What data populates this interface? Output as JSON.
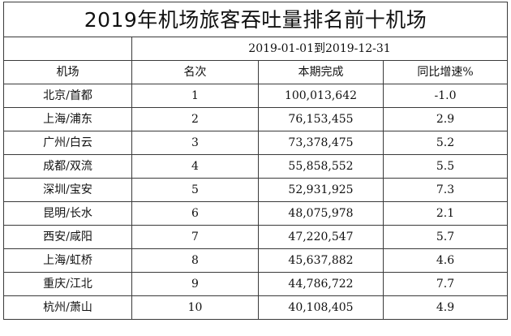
{
  "title": "2019年机场旅客吞吐量排名前十机场",
  "date_range": "2019-01-01到2019-12-31",
  "columns": [
    "机场",
    "名次",
    "本期完成",
    "同比增速%"
  ],
  "rows": [
    {
      "airport": "北京/首都",
      "rank": "1",
      "completed": "100,013,642",
      "growth": "-1.0"
    },
    {
      "airport": "上海/浦东",
      "rank": "2",
      "completed": "76,153,455",
      "growth": "2.9"
    },
    {
      "airport": "广州/白云",
      "rank": "3",
      "completed": "73,378,475",
      "growth": "5.2"
    },
    {
      "airport": "成都/双流",
      "rank": "4",
      "completed": "55,858,552",
      "growth": "5.5"
    },
    {
      "airport": "深圳/宝安",
      "rank": "5",
      "completed": "52,931,925",
      "growth": "7.3"
    },
    {
      "airport": "昆明/长水",
      "rank": "6",
      "completed": "48,075,978",
      "growth": "2.1"
    },
    {
      "airport": "西安/咸阳",
      "rank": "7",
      "completed": "47,220,547",
      "growth": "5.7"
    },
    {
      "airport": "上海/虹桥",
      "rank": "8",
      "completed": "45,637,882",
      "growth": "4.6"
    },
    {
      "airport": "重庆/江北",
      "rank": "9",
      "completed": "44,786,722",
      "growth": "7.7"
    },
    {
      "airport": "杭州/萧山",
      "rank": "10",
      "completed": "40,108,405",
      "growth": "4.9"
    }
  ]
}
